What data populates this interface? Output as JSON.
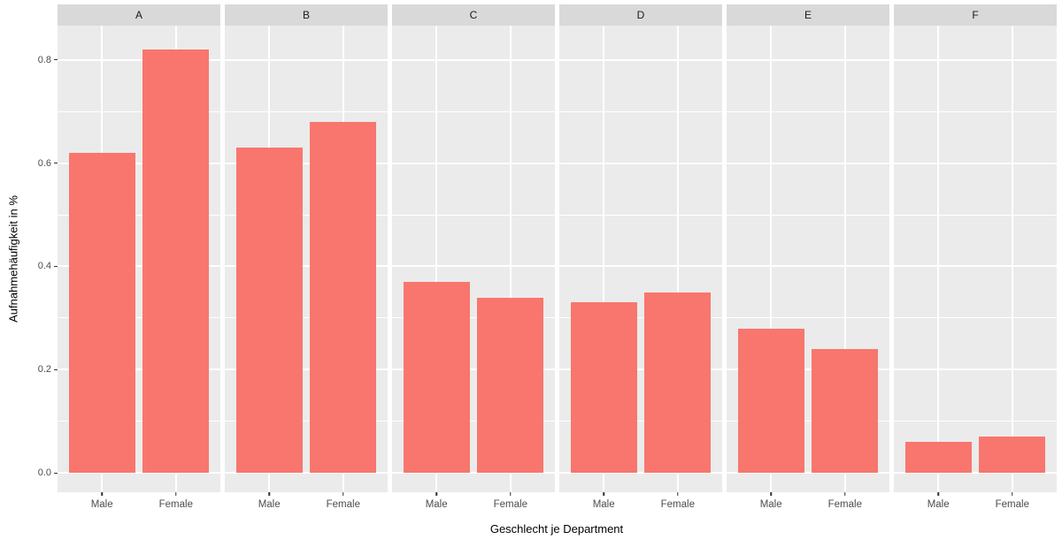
{
  "chart_data": {
    "type": "bar",
    "title": "",
    "xlabel": "Geschlecht je Department",
    "ylabel": "Aufnahmehäufigkeit in %",
    "categories": [
      "Male",
      "Female"
    ],
    "facets": [
      {
        "label": "A",
        "values": [
          0.62,
          0.82
        ]
      },
      {
        "label": "B",
        "values": [
          0.63,
          0.68
        ]
      },
      {
        "label": "C",
        "values": [
          0.37,
          0.34
        ]
      },
      {
        "label": "D",
        "values": [
          0.33,
          0.35
        ]
      },
      {
        "label": "E",
        "values": [
          0.28,
          0.24
        ]
      },
      {
        "label": "F",
        "values": [
          0.06,
          0.07
        ]
      }
    ],
    "y_ticks": [
      0.0,
      0.2,
      0.4,
      0.6,
      0.8
    ],
    "y_tick_labels": [
      "0.0",
      "0.2",
      "0.4",
      "0.6",
      "0.8"
    ],
    "y_minor_ticks": [
      0.1,
      0.3,
      0.5,
      0.7
    ],
    "ylim": [
      -0.037,
      0.866
    ],
    "legend_position": "none",
    "grid": "on",
    "colors": {
      "bar": "#f8766d",
      "panel_bg": "#ebebeb",
      "strip_bg": "#d9d9d9",
      "gridline": "#ffffff",
      "tick_text": "#4d4d4d",
      "strip_text": "#1a1a1a",
      "axis_title_text": "#000000"
    }
  }
}
